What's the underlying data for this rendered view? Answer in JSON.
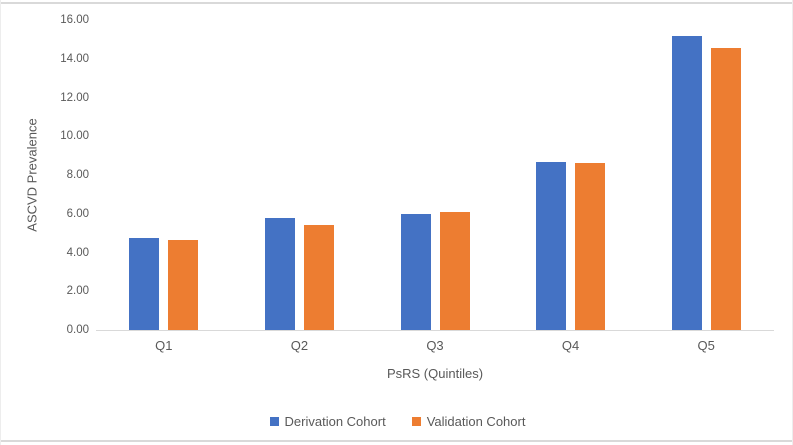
{
  "figure": {
    "background": "#ffffff",
    "rule_color": "#d9d9d9"
  },
  "chart_data": {
    "type": "bar",
    "title": "",
    "categories": [
      "Q1",
      "Q2",
      "Q3",
      "Q4",
      "Q5"
    ],
    "series": [
      {
        "name": "Derivation Cohort",
        "color": "#4472C4",
        "values": [
          4.73,
          5.8,
          5.97,
          8.65,
          15.18
        ]
      },
      {
        "name": "Validation Cohort",
        "color": "#ED7D31",
        "values": [
          4.63,
          5.4,
          6.08,
          8.6,
          14.57
        ]
      }
    ],
    "xlabel": "PsRS (Quintiles)",
    "ylabel": "ASCVD Prevalence",
    "ylim": [
      0,
      16
    ],
    "ytick_step": 2,
    "ytick_labels": [
      "0.00",
      "2.00",
      "4.00",
      "6.00",
      "8.00",
      "10.00",
      "12.00",
      "14.00",
      "16.00"
    ],
    "grid": false,
    "legend_position": "bottom",
    "axis_text_color": "#595959",
    "axis_line_color": "#d9d9d9"
  }
}
